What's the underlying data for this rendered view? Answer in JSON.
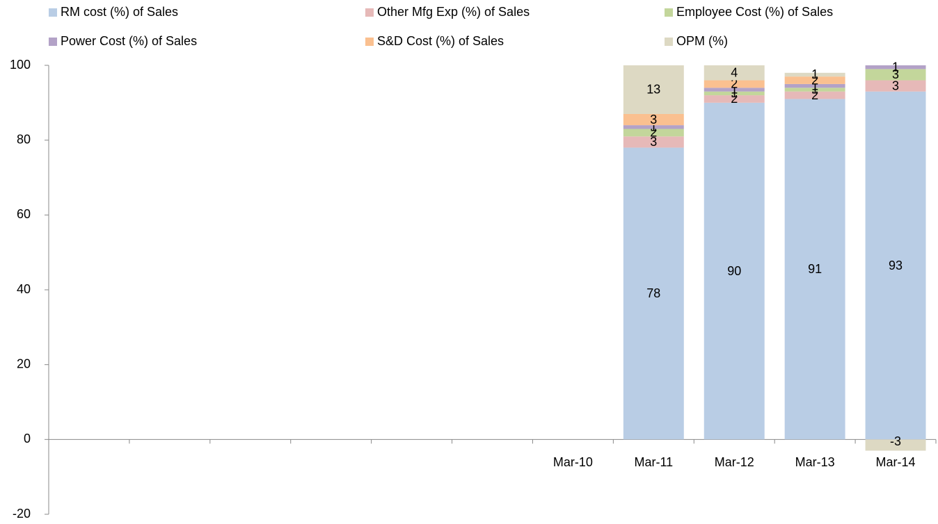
{
  "chart_data": {
    "type": "stacked_bar",
    "categories": [
      null,
      null,
      null,
      null,
      null,
      null,
      "Mar-10",
      "Mar-11",
      "Mar-12",
      "Mar-13",
      "Mar-14"
    ],
    "series": [
      {
        "name": "RM cost (%) of Sales",
        "color": "#b9cde5",
        "values": [
          null,
          null,
          null,
          null,
          null,
          null,
          null,
          78,
          90,
          91,
          93
        ]
      },
      {
        "name": "Other Mfg Exp (%) of Sales",
        "color": "#e6b9b8",
        "values": [
          null,
          null,
          null,
          null,
          null,
          null,
          null,
          3,
          2,
          2,
          3
        ]
      },
      {
        "name": "Employee Cost (%) of Sales",
        "color": "#c3d69b",
        "values": [
          null,
          null,
          null,
          null,
          null,
          null,
          null,
          2,
          1,
          1,
          3
        ]
      },
      {
        "name": "Power Cost (%) of Sales",
        "color": "#b3a2c7",
        "values": [
          null,
          null,
          null,
          null,
          null,
          null,
          null,
          1,
          1,
          1,
          1
        ]
      },
      {
        "name": "S&D Cost (%) of Sales",
        "color": "#fac090",
        "values": [
          null,
          null,
          null,
          null,
          null,
          null,
          null,
          3,
          2,
          2,
          null
        ]
      },
      {
        "name": "OPM (%)",
        "color": "#ddd9c3",
        "values": [
          null,
          null,
          null,
          null,
          null,
          null,
          null,
          13,
          4,
          1,
          -3
        ]
      }
    ],
    "ylim": [
      -20,
      100
    ],
    "yticks": [
      -20,
      0,
      20,
      40,
      60,
      80,
      100
    ],
    "legend": "top"
  }
}
